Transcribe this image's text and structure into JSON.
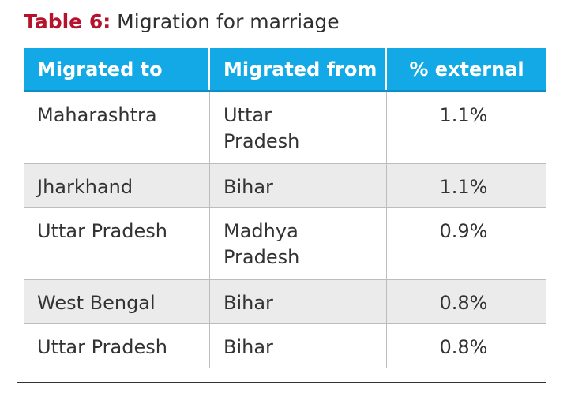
{
  "title": {
    "number": "Table 6:",
    "text": "Migration for marriage"
  },
  "table": {
    "headers": [
      "Migrated to",
      "Migrated from",
      "% external"
    ],
    "rows": [
      {
        "to": "Maharashtra",
        "from_line1": "Uttar",
        "from_line2": "Pradesh",
        "pct": "1.1%"
      },
      {
        "to": "Jharkhand",
        "from_line1": "Bihar",
        "from_line2": "",
        "pct": "1.1%"
      },
      {
        "to": "Uttar Pradesh",
        "from_line1": "Madhya",
        "from_line2": "Pradesh",
        "pct": "0.9%"
      },
      {
        "to": "West Bengal",
        "from_line1": "Bihar",
        "from_line2": "",
        "pct": "0.8%"
      },
      {
        "to": "Uttar Pradesh",
        "from_line1": "Bihar",
        "from_line2": "",
        "pct": "0.8%"
      }
    ]
  },
  "colors": {
    "header_bg": "#12a9e6",
    "title_accent": "#b5122b",
    "alt_row_bg": "#ebebeb"
  }
}
